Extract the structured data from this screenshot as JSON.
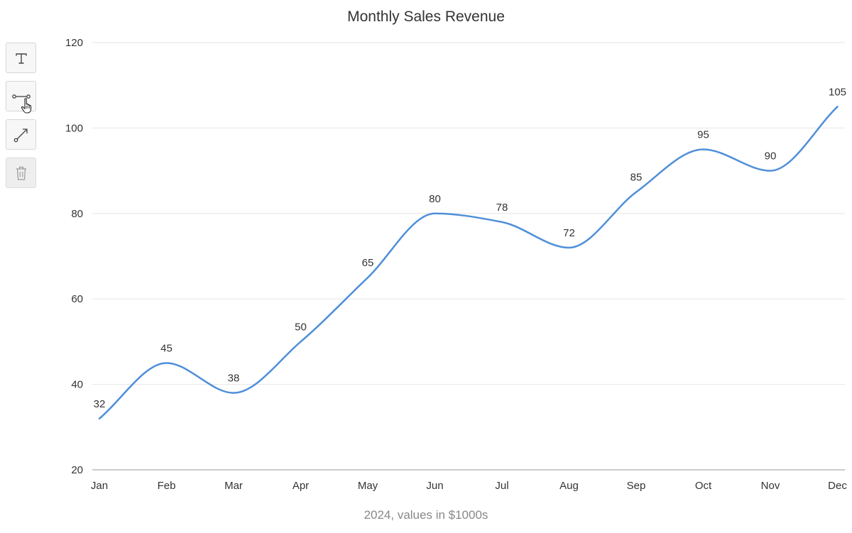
{
  "chart_data": {
    "type": "line",
    "title": "Monthly Sales Revenue",
    "subtitle": "2024, values in $1000s",
    "xlabel": "",
    "ylabel": "",
    "categories": [
      "Jan",
      "Feb",
      "Mar",
      "Apr",
      "May",
      "Jun",
      "Jul",
      "Aug",
      "Sep",
      "Oct",
      "Nov",
      "Dec"
    ],
    "series": [
      {
        "name": "Sales",
        "values": [
          32,
          45,
          38,
          50,
          65,
          80,
          78,
          72,
          85,
          95,
          90,
          105
        ],
        "color": "#4f8fd9"
      }
    ],
    "ylim": [
      20,
      120
    ],
    "yticks": [
      20,
      40,
      60,
      80,
      100,
      120
    ],
    "grid": true,
    "legend": "none",
    "data_labels": true
  },
  "toolbar": {
    "tools": [
      {
        "name": "text-tool",
        "icon": "text-icon"
      },
      {
        "name": "line-segment-tool",
        "icon": "segment-icon"
      },
      {
        "name": "arrow-tool",
        "icon": "arrow-icon"
      },
      {
        "name": "delete-tool",
        "icon": "trash-icon",
        "disabled": true
      }
    ]
  },
  "colors": {
    "line": "#4f8fd9",
    "grid": "#e6e6e6",
    "axis": "#cccccc",
    "text": "#333333",
    "subtitle": "#888888"
  }
}
